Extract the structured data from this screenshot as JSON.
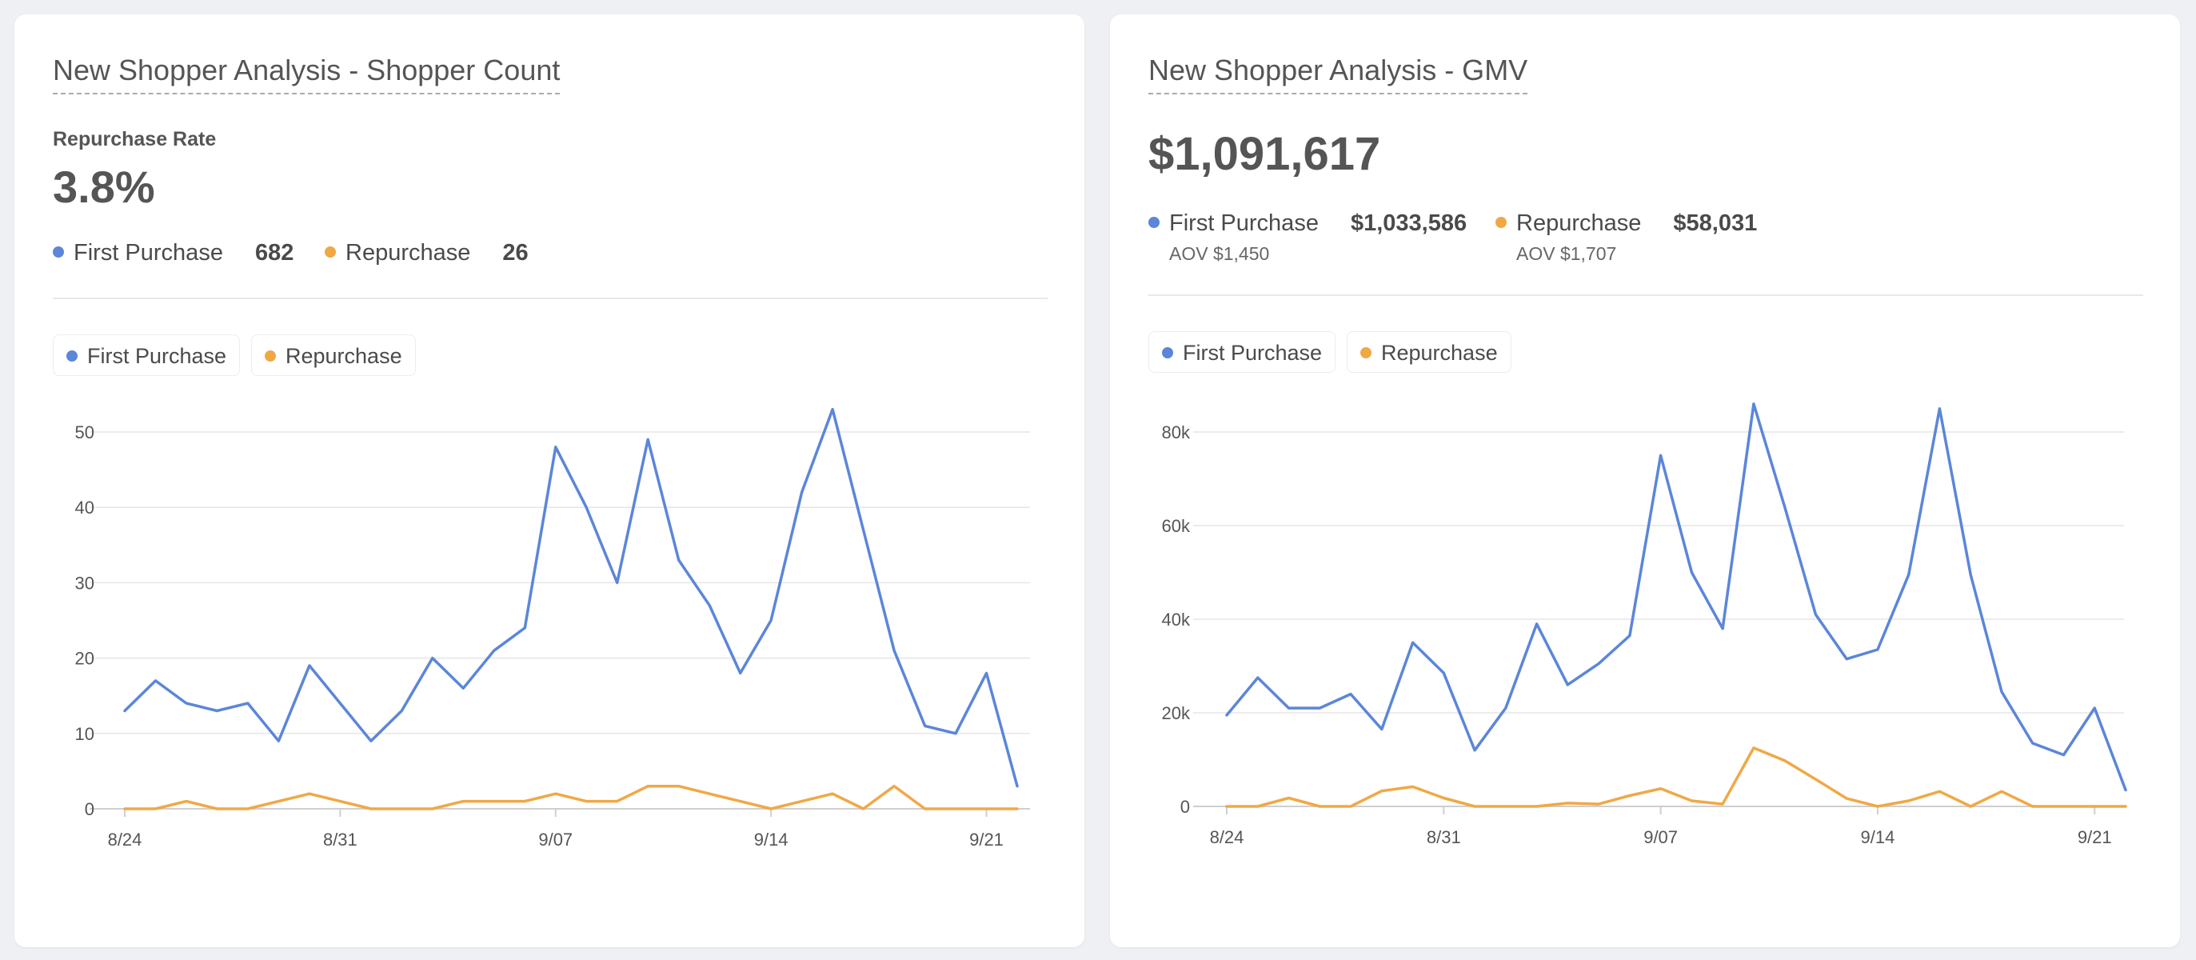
{
  "colors": {
    "first": "#5b86d9",
    "repeat": "#f0a845"
  },
  "left": {
    "title": "New Shopper Analysis - Shopper Count",
    "metric_label": "Repurchase Rate",
    "metric_value": "3.8%",
    "stats": [
      {
        "label": "First Purchase",
        "value": "682"
      },
      {
        "label": "Repurchase",
        "value": "26"
      }
    ],
    "legend": [
      "First Purchase",
      "Repurchase"
    ]
  },
  "right": {
    "title": "New Shopper Analysis - GMV",
    "metric_value": "$1,091,617",
    "stats": [
      {
        "label": "First Purchase",
        "value": "$1,033,586",
        "aov": "AOV $1,450"
      },
      {
        "label": "Repurchase",
        "value": "$58,031",
        "aov": "AOV $1,707"
      }
    ],
    "legend": [
      "First Purchase",
      "Repurchase"
    ]
  },
  "chart_data": [
    {
      "type": "line",
      "title": "New Shopper Analysis - Shopper Count",
      "x": [
        "8/24",
        "8/25",
        "8/26",
        "8/27",
        "8/28",
        "8/29",
        "8/30",
        "8/31",
        "9/01",
        "9/02",
        "9/03",
        "9/04",
        "9/05",
        "9/06",
        "9/07",
        "9/08",
        "9/09",
        "9/10",
        "9/11",
        "9/12",
        "9/13",
        "9/14",
        "9/15",
        "9/16",
        "9/17",
        "9/18",
        "9/19",
        "9/20",
        "9/21",
        "9/22"
      ],
      "x_tick_labels": [
        "8/24",
        "8/31",
        "9/07",
        "9/14",
        "9/21"
      ],
      "series": [
        {
          "name": "First Purchase",
          "values": [
            13,
            17,
            14,
            13,
            14,
            9,
            19,
            14,
            9,
            13,
            20,
            16,
            21,
            24,
            48,
            40,
            30,
            49,
            33,
            27,
            18,
            25,
            42,
            53,
            37,
            21,
            11,
            10,
            18,
            3
          ]
        },
        {
          "name": "Repurchase",
          "values": [
            0,
            0,
            1,
            0,
            0,
            1,
            2,
            1,
            0,
            0,
            0,
            1,
            1,
            1,
            2,
            1,
            1,
            3,
            3,
            2,
            1,
            0,
            1,
            2,
            0,
            3,
            0,
            0,
            0,
            0
          ]
        }
      ],
      "yticks": [
        0,
        10,
        20,
        30,
        40,
        50
      ],
      "ylim": [
        0,
        53
      ],
      "legend": "top-left",
      "grid": true
    },
    {
      "type": "line",
      "title": "New Shopper Analysis - GMV",
      "x": [
        "8/24",
        "8/25",
        "8/26",
        "8/27",
        "8/28",
        "8/29",
        "8/30",
        "8/31",
        "9/01",
        "9/02",
        "9/03",
        "9/04",
        "9/05",
        "9/06",
        "9/07",
        "9/08",
        "9/09",
        "9/10",
        "9/11",
        "9/12",
        "9/13",
        "9/14",
        "9/15",
        "9/16",
        "9/17",
        "9/18",
        "9/19",
        "9/20",
        "9/21",
        "9/22"
      ],
      "x_tick_labels": [
        "8/24",
        "8/31",
        "9/07",
        "9/14",
        "9/21"
      ],
      "series": [
        {
          "name": "First Purchase",
          "values": [
            19500,
            27500,
            21000,
            21000,
            24000,
            16500,
            35000,
            28500,
            12000,
            21000,
            39000,
            26000,
            30500,
            36500,
            75000,
            50000,
            38000,
            86000,
            64000,
            41000,
            31500,
            33500,
            49500,
            85000,
            49500,
            24500,
            13500,
            11000,
            21000,
            3500
          ]
        },
        {
          "name": "Repurchase",
          "values": [
            0,
            0,
            1800,
            0,
            0,
            3300,
            4200,
            1800,
            0,
            0,
            0,
            700,
            500,
            2300,
            3800,
            1200,
            500,
            12500,
            9800,
            5800,
            1700,
            0,
            1200,
            3200,
            0,
            3200,
            0,
            0,
            0,
            0
          ]
        }
      ],
      "y_tick_labels": [
        "0",
        "20k",
        "40k",
        "60k",
        "80k"
      ],
      "yticks": [
        0,
        20000,
        40000,
        60000,
        80000
      ],
      "ylim": [
        0,
        86000
      ],
      "legend": "top-left",
      "grid": true
    }
  ]
}
